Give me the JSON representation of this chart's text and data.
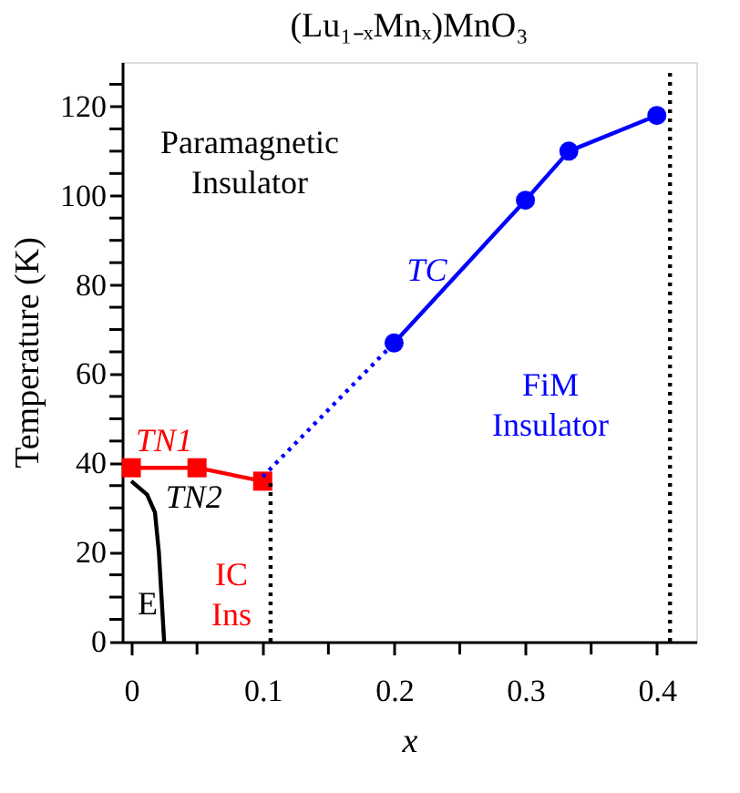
{
  "chart_data": {
    "type": "line",
    "title": "(Lu₁₋ₓMnₓ)MnO₃",
    "xlabel": "x",
    "ylabel": "Temperature (K)",
    "xlim": [
      -0.007,
      0.43
    ],
    "ylim": [
      0,
      130
    ],
    "xticks": [
      0,
      {
        "value": 0.05,
        "label": null
      },
      0.1,
      {
        "value": 0.15,
        "label": null
      },
      0.2,
      {
        "value": 0.25,
        "label": null
      },
      0.3,
      {
        "value": 0.35,
        "label": null
      },
      0.4
    ],
    "yticks": [
      0,
      {
        "value": 5,
        "label": null
      },
      {
        "value": 10,
        "label": null
      },
      {
        "value": 15,
        "label": null
      },
      20,
      {
        "value": 25,
        "label": null
      },
      {
        "value": 30,
        "label": null
      },
      {
        "value": 35,
        "label": null
      },
      40,
      {
        "value": 45,
        "label": null
      },
      {
        "value": 50,
        "label": null
      },
      {
        "value": 55,
        "label": null
      },
      60,
      {
        "value": 65,
        "label": null
      },
      {
        "value": 70,
        "label": null
      },
      {
        "value": 75,
        "label": null
      },
      80,
      {
        "value": 85,
        "label": null
      },
      {
        "value": 90,
        "label": null
      },
      {
        "value": 95,
        "label": null
      },
      100,
      {
        "value": 105,
        "label": null
      },
      {
        "value": 110,
        "label": null
      },
      {
        "value": 115,
        "label": null
      },
      120,
      {
        "value": 125,
        "label": null
      }
    ],
    "grid": false,
    "series": [
      {
        "name": "TN1",
        "color": "#ff0000",
        "x": [
          0,
          0.05,
          0.1
        ],
        "values": [
          39,
          39,
          36
        ],
        "marker": "square",
        "line_style": "solid"
      },
      {
        "name": "TC",
        "color": "#0000ff",
        "x": [
          0.2,
          0.3,
          0.333,
          0.4
        ],
        "values": [
          67,
          99,
          110,
          118
        ],
        "marker": "circle",
        "line_style": "solid"
      },
      {
        "color": "#0000ff",
        "x": [
          0.1,
          0.2
        ],
        "values": [
          37,
          67
        ],
        "marker": "none",
        "line_style": "dotted"
      },
      {
        "name": "TN2",
        "color": "#000000",
        "x": [
          0,
          0.012,
          0.018,
          0.021,
          0.025
        ],
        "values": [
          36,
          33,
          29,
          20,
          0
        ],
        "marker": "none",
        "line_style": "solid"
      },
      {
        "color": "#000000",
        "x": [
          0.106,
          0.106
        ],
        "values": [
          0,
          36
        ],
        "marker": "none",
        "line_style": "dotted"
      },
      {
        "color": "#000000",
        "x": [
          0.41,
          0.41
        ],
        "values": [
          0,
          128
        ],
        "marker": "none",
        "line_style": "dotted"
      }
    ],
    "annotations": [
      "Paramagnetic\nInsulator",
      "FiM\nInsulator",
      "IC\nIns",
      "E"
    ]
  }
}
